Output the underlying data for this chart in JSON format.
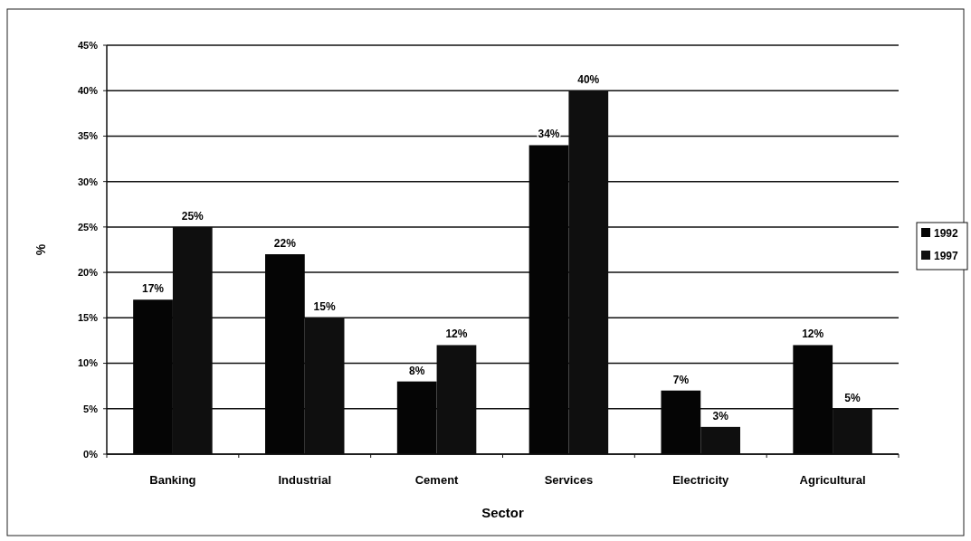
{
  "chart_data": {
    "type": "bar",
    "xlabel": "Sector",
    "ylabel": "%",
    "categories": [
      "Banking",
      "Industrial",
      "Cement",
      "Services",
      "Electricity",
      "Agricultural"
    ],
    "series": [
      {
        "name": "1992",
        "color": "#050505",
        "values": [
          17,
          22,
          8,
          34,
          7,
          12
        ],
        "value_labels": [
          "17%",
          "22%",
          "8%",
          "34%",
          "7%",
          "12%"
        ]
      },
      {
        "name": "1997",
        "color": "#0f0f0f",
        "values": [
          25,
          15,
          12,
          40,
          3,
          5
        ],
        "value_labels": [
          "25%",
          "15%",
          "12%",
          "40%",
          "3%",
          "5%"
        ]
      }
    ],
    "ylim": [
      0,
      45
    ],
    "yticks": [
      {
        "value": 0,
        "label": "0%"
      },
      {
        "value": 5,
        "label": "5%"
      },
      {
        "value": 10,
        "label": "10%"
      },
      {
        "value": 15,
        "label": "15%"
      },
      {
        "value": 20,
        "label": "20%"
      },
      {
        "value": 25,
        "label": "25%"
      },
      {
        "value": 30,
        "label": "30%"
      },
      {
        "value": 35,
        "label": "35%"
      },
      {
        "value": 40,
        "label": "40%"
      },
      {
        "value": 45,
        "label": "45%"
      }
    ],
    "grid": "y",
    "legend": "right"
  }
}
